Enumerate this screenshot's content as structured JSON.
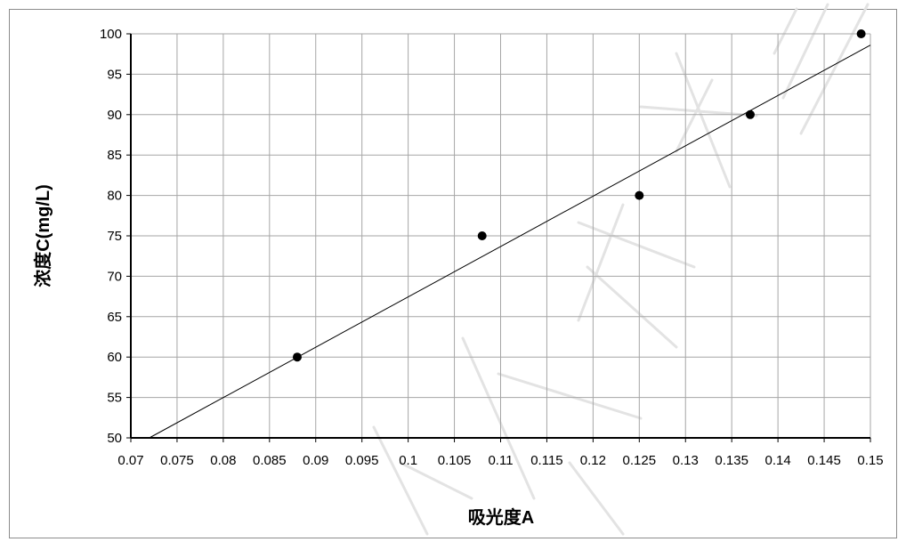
{
  "chart_data": {
    "type": "scatter",
    "xlabel": "吸光度A",
    "ylabel": "浓度C(mg/L)",
    "xlim": [
      0.07,
      0.15
    ],
    "ylim": [
      50,
      100
    ],
    "x_ticks": [
      "0.07",
      "0.075",
      "0.08",
      "0.085",
      "0.09",
      "0.095",
      "0.1",
      "0.105",
      "0.11",
      "0.115",
      "0.12",
      "0.125",
      "0.13",
      "0.135",
      "0.14",
      "0.145",
      "0.15"
    ],
    "y_ticks": [
      "50",
      "55",
      "60",
      "65",
      "70",
      "75",
      "80",
      "85",
      "90",
      "95",
      "100"
    ],
    "grid": true,
    "points": [
      {
        "x": 0.088,
        "y": 60
      },
      {
        "x": 0.108,
        "y": 75
      },
      {
        "x": 0.125,
        "y": 80
      },
      {
        "x": 0.137,
        "y": 90
      },
      {
        "x": 0.149,
        "y": 100
      }
    ],
    "trendline": {
      "x": [
        0.072,
        0.15
      ],
      "y": [
        50,
        98.6
      ]
    }
  }
}
